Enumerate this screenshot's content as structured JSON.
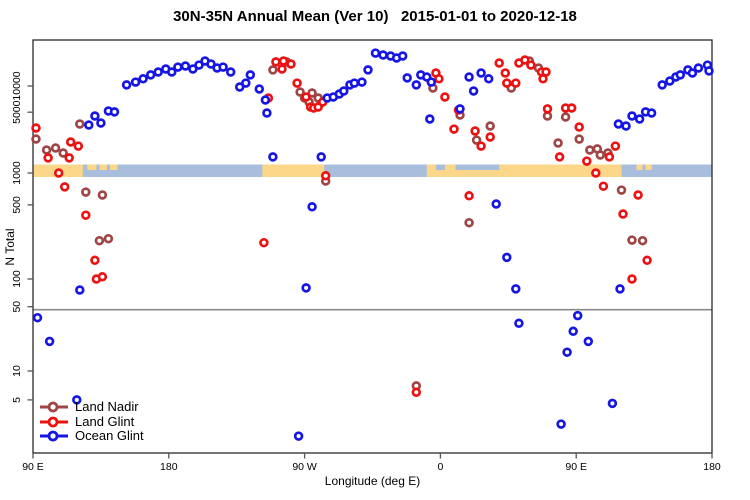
{
  "title": "30N-35N Annual Mean (Ver 10)   2015-01-01 to 2020-12-18",
  "chart_data": {
    "type": "scatter",
    "title": "30N-35N Annual Mean (Ver 10)   2015-01-01 to 2020-12-18",
    "xlabel": "Longitude (deg E)",
    "ylabel": "N Total",
    "y_scale": "log",
    "grid": "off",
    "legend_position": "bottom-left",
    "y_ticks": [
      10000,
      5000,
      1000,
      500,
      100,
      50,
      10,
      5
    ],
    "x_ticks": [
      {
        "axis_deg": 90,
        "label": "90 E"
      },
      {
        "axis_deg": 180,
        "label": "180"
      },
      {
        "axis_deg": 270,
        "label": "90 W"
      },
      {
        "axis_deg": 360,
        "label": "0"
      },
      {
        "axis_deg": 450,
        "label": "90 E"
      },
      {
        "axis_deg": 540,
        "label": "180"
      }
    ],
    "x_range_axis_deg": [
      90,
      540
    ],
    "y_range": [
      2,
      34000
    ],
    "reference_line_y": 50,
    "reference_line_color": "#8a8a8a",
    "map_strip": {
      "description": "world map band for 30N-35N latitude drawn across the 1000 level",
      "ocean_color": "#a9bedc",
      "land_color": "#fcd78a",
      "ocean_span_axis_deg": [
        90,
        540
      ],
      "land_spans_axis_deg": [
        [
          90,
          123
        ],
        [
          242,
          283
        ],
        [
          351,
          480
        ]
      ],
      "island_spans_axis_deg": [
        [
          126,
          132
        ],
        [
          134,
          139
        ],
        [
          141,
          146
        ],
        [
          490,
          494
        ],
        [
          496,
          500
        ]
      ],
      "sea_notch_spans_axis_deg": [
        [
          357,
          363
        ],
        [
          370,
          399
        ]
      ]
    },
    "series": [
      {
        "name": "Land Nadir",
        "color": "#9e4545",
        "points": [
          [
            92,
            2460
          ],
          [
            99,
            1840
          ],
          [
            105,
            1940
          ],
          [
            110,
            1700
          ],
          [
            121,
            3660
          ],
          [
            125,
            660
          ],
          [
            134,
            230
          ],
          [
            136,
            620
          ],
          [
            140,
            240
          ],
          [
            249,
            15300
          ],
          [
            258,
            18900
          ],
          [
            267,
            8530
          ],
          [
            270,
            7280
          ],
          [
            273,
            6550
          ],
          [
            275,
            8310
          ],
          [
            279,
            7280
          ],
          [
            284,
            840
          ],
          [
            344,
            7
          ],
          [
            355,
            9480
          ],
          [
            373,
            4640
          ],
          [
            379,
            340
          ],
          [
            384,
            2390
          ],
          [
            393,
            3470
          ],
          [
            407,
            9480
          ],
          [
            419,
            19400
          ],
          [
            425,
            16100
          ],
          [
            431,
            4520
          ],
          [
            438,
            2210
          ],
          [
            443,
            4400
          ],
          [
            452,
            2450
          ],
          [
            459,
            1840
          ],
          [
            464,
            1890
          ],
          [
            466,
            1610
          ],
          [
            471,
            1700
          ],
          [
            480,
            690
          ],
          [
            487,
            233
          ],
          [
            494,
            230
          ]
        ]
      },
      {
        "name": "Land Glint",
        "color": "#ec1212",
        "points": [
          [
            92,
            3290
          ],
          [
            100,
            1490
          ],
          [
            107,
            1000
          ],
          [
            111,
            740
          ],
          [
            114,
            1490
          ],
          [
            115,
            2270
          ],
          [
            120,
            2040
          ],
          [
            125,
            400
          ],
          [
            131,
            150
          ],
          [
            132,
            100
          ],
          [
            136,
            105
          ],
          [
            243,
            220
          ],
          [
            246,
            7280
          ],
          [
            251,
            18900
          ],
          [
            255,
            15700
          ],
          [
            256,
            19400
          ],
          [
            261,
            17900
          ],
          [
            265,
            10800
          ],
          [
            271,
            7480
          ],
          [
            274,
            5740
          ],
          [
            276,
            5580
          ],
          [
            279,
            5740
          ],
          [
            282,
            6550
          ],
          [
            284,
            940
          ],
          [
            344,
            6
          ],
          [
            357,
            14100
          ],
          [
            359,
            12100
          ],
          [
            363,
            7480
          ],
          [
            369,
            3200
          ],
          [
            372,
            5300
          ],
          [
            379,
            610
          ],
          [
            383,
            3040
          ],
          [
            387,
            2040
          ],
          [
            393,
            2590
          ],
          [
            399,
            18400
          ],
          [
            403,
            14100
          ],
          [
            404,
            10800
          ],
          [
            410,
            10800
          ],
          [
            412,
            18400
          ],
          [
            416,
            19900
          ],
          [
            420,
            17400
          ],
          [
            427,
            14500
          ],
          [
            428,
            12100
          ],
          [
            430,
            14500
          ],
          [
            431,
            5450
          ],
          [
            439,
            1530
          ],
          [
            443,
            5580
          ],
          [
            447,
            5580
          ],
          [
            452,
            3380
          ],
          [
            457,
            1370
          ],
          [
            463,
            1000
          ],
          [
            468,
            750
          ],
          [
            472,
            1530
          ],
          [
            476,
            2040
          ],
          [
            481,
            410
          ],
          [
            487,
            100
          ],
          [
            491,
            620
          ],
          [
            497,
            150
          ]
        ]
      },
      {
        "name": "Ocean Glint",
        "color": "#1515e6",
        "points": [
          [
            93,
            38
          ],
          [
            101,
            21
          ],
          [
            119,
            5
          ],
          [
            121,
            76
          ],
          [
            127,
            3560
          ],
          [
            131,
            4520
          ],
          [
            135,
            3760
          ],
          [
            140,
            5160
          ],
          [
            144,
            5040
          ],
          [
            152,
            10300
          ],
          [
            158,
            11100
          ],
          [
            163,
            12100
          ],
          [
            168,
            13400
          ],
          [
            173,
            14500
          ],
          [
            178,
            15700
          ],
          [
            182,
            14500
          ],
          [
            186,
            16500
          ],
          [
            191,
            17000
          ],
          [
            196,
            15700
          ],
          [
            200,
            17400
          ],
          [
            204,
            19400
          ],
          [
            208,
            17900
          ],
          [
            212,
            16100
          ],
          [
            216,
            16500
          ],
          [
            221,
            14500
          ],
          [
            227,
            9750
          ],
          [
            231,
            10800
          ],
          [
            234,
            13400
          ],
          [
            240,
            9240
          ],
          [
            244,
            6900
          ],
          [
            245,
            4900
          ],
          [
            249,
            1530
          ],
          [
            266,
            2.1
          ],
          [
            271,
            80
          ],
          [
            275,
            480
          ],
          [
            281,
            1530
          ],
          [
            285,
            7280
          ],
          [
            289,
            7480
          ],
          [
            293,
            8090
          ],
          [
            296,
            8770
          ],
          [
            300,
            10300
          ],
          [
            303,
            10800
          ],
          [
            308,
            11100
          ],
          [
            312,
            15300
          ],
          [
            317,
            23900
          ],
          [
            322,
            22700
          ],
          [
            327,
            22100
          ],
          [
            331,
            21000
          ],
          [
            335,
            22100
          ],
          [
            338,
            12400
          ],
          [
            344,
            10300
          ],
          [
            347,
            13400
          ],
          [
            351,
            12700
          ],
          [
            353,
            4180
          ],
          [
            354,
            11100
          ],
          [
            373,
            5450
          ],
          [
            379,
            12700
          ],
          [
            382,
            8770
          ],
          [
            387,
            14100
          ],
          [
            392,
            12100
          ],
          [
            397,
            510
          ],
          [
            404,
            160
          ],
          [
            410,
            78
          ],
          [
            412,
            33
          ],
          [
            440,
            2.8
          ],
          [
            444,
            16
          ],
          [
            448,
            27
          ],
          [
            451,
            40
          ],
          [
            458,
            21
          ],
          [
            474,
            4.6
          ],
          [
            478,
            3660
          ],
          [
            479,
            78
          ],
          [
            483,
            3470
          ],
          [
            487,
            4520
          ],
          [
            492,
            4170
          ],
          [
            496,
            5040
          ],
          [
            500,
            4900
          ],
          [
            507,
            10300
          ],
          [
            512,
            11400
          ],
          [
            516,
            12700
          ],
          [
            519,
            13400
          ],
          [
            524,
            15300
          ],
          [
            527,
            14100
          ],
          [
            531,
            16100
          ],
          [
            537,
            17400
          ],
          [
            538,
            14900
          ]
        ]
      }
    ]
  },
  "legend": {
    "items": [
      {
        "label": "Land Nadir"
      },
      {
        "label": "Land Glint"
      },
      {
        "label": "Ocean Glint"
      }
    ]
  }
}
